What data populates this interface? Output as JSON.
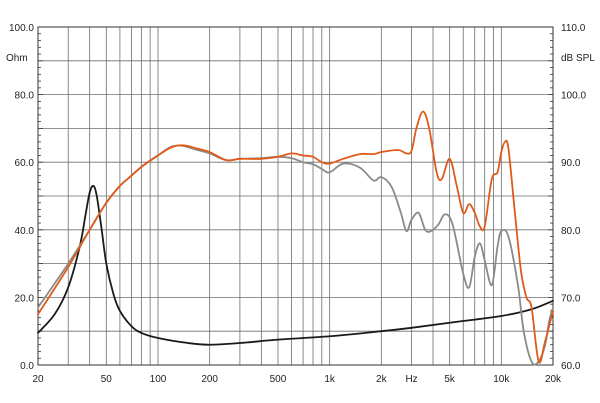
{
  "chart_data": {
    "type": "line",
    "x_scale": "log",
    "xlim": [
      20,
      20000
    ],
    "grid": true,
    "x_major_ticks": [
      {
        "value": 20,
        "label": "20"
      },
      {
        "value": 50,
        "label": "50"
      },
      {
        "value": 100,
        "label": "100"
      },
      {
        "value": 200,
        "label": "200"
      },
      {
        "value": 500,
        "label": "500"
      },
      {
        "value": 1000,
        "label": "1k"
      },
      {
        "value": 2000,
        "label": "2k"
      },
      {
        "value": 5000,
        "label": "5k"
      },
      {
        "value": 10000,
        "label": "10k"
      },
      {
        "value": 20000,
        "label": "20k"
      }
    ],
    "x_unit_label": {
      "value": 3000,
      "label": "Hz"
    },
    "y_left": {
      "unit": "Ohm",
      "ylim": [
        0,
        100
      ],
      "ticks": [
        "0.0",
        "20.0",
        "40.0",
        "60.0",
        "80.0",
        "100.0"
      ]
    },
    "y_right": {
      "unit": "dB SPL",
      "ylim": [
        60,
        110
      ],
      "ticks": [
        "60.0",
        "70.0",
        "80.0",
        "90.0",
        "100.0",
        "110.0"
      ]
    },
    "series": [
      {
        "axis": "left",
        "color": "#1a1a1a",
        "points": [
          [
            20,
            9.5
          ],
          [
            25,
            15
          ],
          [
            30,
            23
          ],
          [
            35,
            35
          ],
          [
            38,
            45
          ],
          [
            40,
            51
          ],
          [
            42,
            53
          ],
          [
            44,
            50
          ],
          [
            47,
            40
          ],
          [
            50,
            30
          ],
          [
            55,
            21
          ],
          [
            60,
            16
          ],
          [
            70,
            11.5
          ],
          [
            80,
            9.5
          ],
          [
            100,
            8
          ],
          [
            150,
            6.5
          ],
          [
            200,
            6
          ],
          [
            300,
            6.5
          ],
          [
            500,
            7.5
          ],
          [
            1000,
            8.5
          ],
          [
            2000,
            10
          ],
          [
            3000,
            11
          ],
          [
            5000,
            12.5
          ],
          [
            10000,
            14.5
          ],
          [
            15000,
            16.5
          ],
          [
            20000,
            19
          ]
        ]
      },
      {
        "axis": "right",
        "color": "#8a8a8a",
        "points": [
          [
            20,
            68.5
          ],
          [
            30,
            75
          ],
          [
            40,
            80
          ],
          [
            50,
            84
          ],
          [
            60,
            86.5
          ],
          [
            70,
            88
          ],
          [
            80,
            89.3
          ],
          [
            100,
            91
          ],
          [
            120,
            92.3
          ],
          [
            140,
            92.4
          ],
          [
            170,
            91.8
          ],
          [
            200,
            91.3
          ],
          [
            250,
            90.3
          ],
          [
            300,
            90.5
          ],
          [
            400,
            90.6
          ],
          [
            500,
            90.8
          ],
          [
            600,
            90.6
          ],
          [
            700,
            90
          ],
          [
            800,
            89.7
          ],
          [
            900,
            89
          ],
          [
            1000,
            88.5
          ],
          [
            1200,
            89.8
          ],
          [
            1500,
            89.2
          ],
          [
            1800,
            87.3
          ],
          [
            2000,
            87.8
          ],
          [
            2300,
            86.3
          ],
          [
            2600,
            82.5
          ],
          [
            2800,
            79.8
          ],
          [
            3000,
            81.5
          ],
          [
            3300,
            82.5
          ],
          [
            3600,
            80
          ],
          [
            3900,
            79.8
          ],
          [
            4300,
            80.8
          ],
          [
            4700,
            82.3
          ],
          [
            5200,
            80.8
          ],
          [
            6000,
            73.5
          ],
          [
            6500,
            71.5
          ],
          [
            7000,
            76
          ],
          [
            7500,
            78
          ],
          [
            8000,
            75.5
          ],
          [
            8800,
            71.8
          ],
          [
            9500,
            77.5
          ],
          [
            10000,
            79.8
          ],
          [
            11000,
            79
          ],
          [
            12500,
            71.8
          ],
          [
            13500,
            65
          ],
          [
            15000,
            60.5
          ],
          [
            16500,
            60.5
          ],
          [
            18000,
            63
          ],
          [
            19000,
            66.5
          ],
          [
            20000,
            68.5
          ]
        ]
      },
      {
        "axis": "right",
        "color": "#e05a1a",
        "points": [
          [
            20,
            67.5
          ],
          [
            30,
            74.5
          ],
          [
            40,
            80
          ],
          [
            50,
            84
          ],
          [
            60,
            86.5
          ],
          [
            70,
            88
          ],
          [
            80,
            89.3
          ],
          [
            100,
            91
          ],
          [
            120,
            92.2
          ],
          [
            140,
            92.5
          ],
          [
            170,
            92
          ],
          [
            200,
            91.5
          ],
          [
            250,
            90.3
          ],
          [
            300,
            90.5
          ],
          [
            400,
            90.5
          ],
          [
            500,
            90.8
          ],
          [
            600,
            91.3
          ],
          [
            700,
            91
          ],
          [
            800,
            90.8
          ],
          [
            900,
            90
          ],
          [
            1000,
            89.8
          ],
          [
            1200,
            90.5
          ],
          [
            1500,
            91.2
          ],
          [
            1800,
            91.2
          ],
          [
            2000,
            91.5
          ],
          [
            2500,
            91.8
          ],
          [
            2800,
            91.3
          ],
          [
            3000,
            91.7
          ],
          [
            3200,
            95
          ],
          [
            3500,
            97.5
          ],
          [
            3800,
            95
          ],
          [
            4200,
            88.5
          ],
          [
            4500,
            87.5
          ],
          [
            5000,
            90.5
          ],
          [
            5500,
            86.5
          ],
          [
            6000,
            82.5
          ],
          [
            6500,
            83.8
          ],
          [
            7000,
            82.5
          ],
          [
            7500,
            80.5
          ],
          [
            8000,
            80.5
          ],
          [
            8800,
            87.5
          ],
          [
            9500,
            88.5
          ],
          [
            10000,
            91.5
          ],
          [
            10500,
            93
          ],
          [
            11000,
            92
          ],
          [
            12000,
            82.5
          ],
          [
            13000,
            74
          ],
          [
            14000,
            70
          ],
          [
            15000,
            68.5
          ],
          [
            16500,
            60.5
          ],
          [
            18000,
            63.5
          ],
          [
            20000,
            68
          ]
        ]
      }
    ]
  }
}
